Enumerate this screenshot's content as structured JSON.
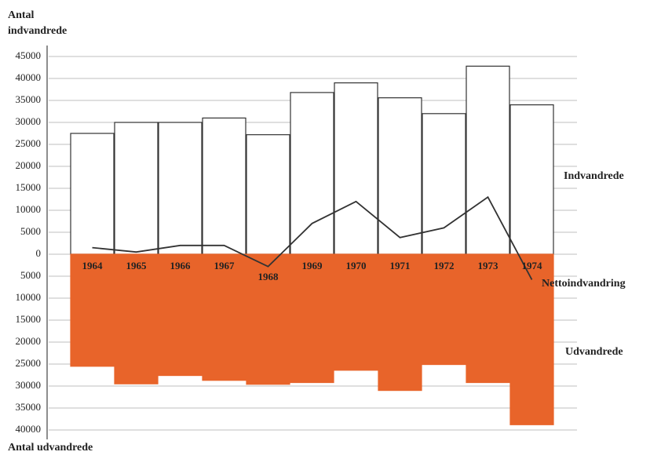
{
  "chart_data": {
    "type": "bar",
    "ylabel_top": "Antal indvandrede",
    "ylabel_bottom": "Antal udvandrede",
    "categories": [
      "1964",
      "1965",
      "1966",
      "1967",
      "1968",
      "1969",
      "1970",
      "1971",
      "1972",
      "1973",
      "1974"
    ],
    "series": [
      {
        "name": "Indvandrede",
        "type": "bar",
        "color": "#ffffff",
        "values": [
          27500,
          30000,
          30000,
          31000,
          27200,
          36800,
          39000,
          35600,
          32000,
          42800,
          34000
        ]
      },
      {
        "name": "Udvandrede",
        "type": "bar",
        "color": "#e8642a",
        "values": [
          -25500,
          -29500,
          -27600,
          -28700,
          -29600,
          -29200,
          -26400,
          -31000,
          -25100,
          -29200,
          -38800
        ]
      },
      {
        "name": "Nettoindvandring",
        "type": "line",
        "color": "#333333",
        "values": [
          1500,
          500,
          2000,
          2000,
          -2800,
          7000,
          12000,
          3800,
          6000,
          13000,
          -5800
        ]
      }
    ],
    "ylim": [
      -40000,
      45000
    ],
    "yticks": [
      45000,
      40000,
      35000,
      30000,
      25000,
      20000,
      15000,
      10000,
      5000,
      0,
      {
        "value": -5000,
        "label": "5000"
      },
      {
        "value": -10000,
        "label": "10000"
      },
      {
        "value": -15000,
        "label": "15000"
      },
      {
        "value": -20000,
        "label": "20000"
      },
      {
        "value": -25000,
        "label": "25000"
      },
      {
        "value": -30000,
        "label": "30000"
      },
      {
        "value": -35000,
        "label": "35000"
      },
      {
        "value": -40000,
        "label": "40000"
      }
    ],
    "grid": true
  }
}
